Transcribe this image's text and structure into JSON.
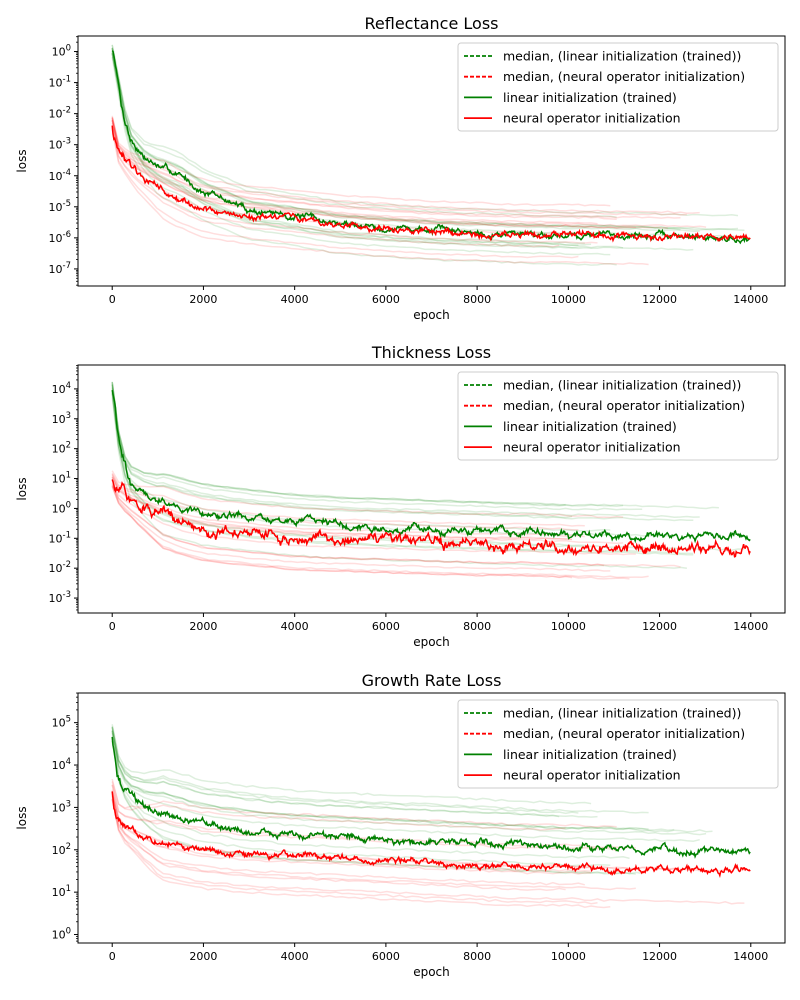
{
  "figure": {
    "type": "line",
    "rows": 3
  },
  "chart_data": [
    {
      "type": "line",
      "title": "Reflectance Loss",
      "xlabel": "epoch",
      "ylabel": "loss",
      "xlim": [
        -750,
        14750
      ],
      "ylim_log10": [
        -7.55,
        0.5
      ],
      "yscale": "log",
      "xticks": [
        0,
        2000,
        4000,
        6000,
        8000,
        10000,
        12000,
        14000
      ],
      "yticks_log10": [
        -7,
        -6,
        -5,
        -4,
        -3,
        -2,
        -1,
        0
      ],
      "legend_position": "top-right",
      "legend": [
        "median, (linear initialization (trained))",
        "median, (neural operator initialization)",
        "linear initialization (trained)",
        "neural operator initialization"
      ],
      "series": [
        {
          "kind": "median",
          "color": "#008000",
          "x": [
            0,
            50,
            100,
            200,
            400,
            700,
            1000,
            1500,
            2000,
            3000,
            4000,
            5000,
            6000,
            7000,
            8000,
            9000,
            10000,
            11000,
            12000,
            13000,
            14000
          ],
          "log10_y": [
            0.05,
            -0.1,
            -0.6,
            -1.7,
            -2.8,
            -3.4,
            -3.7,
            -4.0,
            -4.5,
            -5.1,
            -5.3,
            -5.55,
            -5.65,
            -5.75,
            -5.8,
            -5.85,
            -5.9,
            -5.9,
            -5.95,
            -6.0,
            -6.0
          ],
          "noise": 0.12
        },
        {
          "kind": "median",
          "color": "#ff0000",
          "x": [
            0,
            30,
            100,
            300,
            600,
            1000,
            1500,
            2000,
            3000,
            4000,
            5000,
            6000,
            7000,
            8000,
            9000,
            10000,
            11000,
            12000,
            13000,
            14000
          ],
          "log10_y": [
            -2.3,
            -2.8,
            -3.2,
            -3.6,
            -4.0,
            -4.4,
            -4.8,
            -5.1,
            -5.3,
            -5.45,
            -5.6,
            -5.7,
            -5.8,
            -5.85,
            -5.9,
            -5.9,
            -5.95,
            -5.95,
            -6.0,
            -6.05
          ],
          "noise": 0.13
        }
      ]
    },
    {
      "type": "line",
      "title": "Thickness Loss",
      "xlabel": "epoch",
      "ylabel": "loss",
      "xlim": [
        -750,
        14750
      ],
      "ylim_log10": [
        -3.5,
        4.8
      ],
      "yscale": "log",
      "xticks": [
        0,
        2000,
        4000,
        6000,
        8000,
        10000,
        12000,
        14000
      ],
      "yticks_log10": [
        -3,
        -2,
        -1,
        0,
        1,
        2,
        3,
        4
      ],
      "legend_position": "top-right",
      "legend": [
        "median, (linear initialization (trained))",
        "median, (neural operator initialization)",
        "linear initialization (trained)",
        "neural operator initialization"
      ],
      "series": [
        {
          "kind": "median",
          "color": "#008000",
          "x": [
            0,
            50,
            100,
            200,
            400,
            700,
            1000,
            1500,
            2000,
            3000,
            4000,
            5000,
            6000,
            7000,
            8000,
            9000,
            10000,
            11000,
            12000,
            13000,
            14000
          ],
          "log10_y": [
            4.0,
            3.5,
            2.7,
            1.6,
            0.9,
            0.5,
            0.25,
            0.05,
            -0.15,
            -0.35,
            -0.5,
            -0.6,
            -0.65,
            -0.7,
            -0.75,
            -0.8,
            -0.85,
            -0.85,
            -0.9,
            -0.95,
            -0.95
          ],
          "noise": 0.15
        },
        {
          "kind": "median",
          "color": "#ff0000",
          "x": [
            0,
            30,
            100,
            300,
            600,
            1000,
            1500,
            2000,
            3000,
            4000,
            5000,
            6000,
            7000,
            8000,
            9000,
            10000,
            11000,
            12000,
            13000,
            14000
          ],
          "log10_y": [
            1.0,
            0.8,
            0.6,
            0.35,
            0.1,
            -0.2,
            -0.5,
            -0.7,
            -0.85,
            -1.0,
            -1.05,
            -1.1,
            -1.15,
            -1.2,
            -1.2,
            -1.25,
            -1.3,
            -1.3,
            -1.35,
            -1.4
          ],
          "noise": 0.22
        }
      ]
    },
    {
      "type": "line",
      "title": "Growth Rate Loss",
      "xlabel": "epoch",
      "ylabel": "loss",
      "xlim": [
        -750,
        14750
      ],
      "ylim_log10": [
        -0.2,
        5.7
      ],
      "yscale": "log",
      "xticks": [
        0,
        2000,
        4000,
        6000,
        8000,
        10000,
        12000,
        14000
      ],
      "yticks_log10": [
        0,
        1,
        2,
        3,
        4,
        5
      ],
      "legend_position": "top-right",
      "legend": [
        "median, (linear initialization (trained))",
        "median, (neural operator initialization)",
        "linear initialization (trained)",
        "neural operator initialization"
      ],
      "series": [
        {
          "kind": "median",
          "color": "#008000",
          "x": [
            0,
            50,
            100,
            200,
            400,
            700,
            1000,
            1500,
            2000,
            3000,
            4000,
            5000,
            6000,
            7000,
            8000,
            9000,
            10000,
            11000,
            12000,
            13000,
            14000
          ],
          "log10_y": [
            4.7,
            4.4,
            4.0,
            3.6,
            3.3,
            3.05,
            2.9,
            2.75,
            2.6,
            2.45,
            2.35,
            2.3,
            2.25,
            2.2,
            2.15,
            2.1,
            2.05,
            2.05,
            2.0,
            2.0,
            2.0
          ],
          "noise": 0.1
        },
        {
          "kind": "median",
          "color": "#ff0000",
          "x": [
            0,
            30,
            100,
            300,
            600,
            1000,
            1500,
            2000,
            3000,
            4000,
            5000,
            6000,
            7000,
            8000,
            9000,
            10000,
            11000,
            12000,
            13000,
            14000
          ],
          "log10_y": [
            3.4,
            3.0,
            2.8,
            2.55,
            2.4,
            2.2,
            2.1,
            2.0,
            1.9,
            1.85,
            1.8,
            1.75,
            1.7,
            1.65,
            1.6,
            1.6,
            1.55,
            1.55,
            1.5,
            1.5
          ],
          "noise": 0.09
        }
      ]
    }
  ],
  "colors": {
    "linear": "#008000",
    "neural": "#ff0000"
  }
}
